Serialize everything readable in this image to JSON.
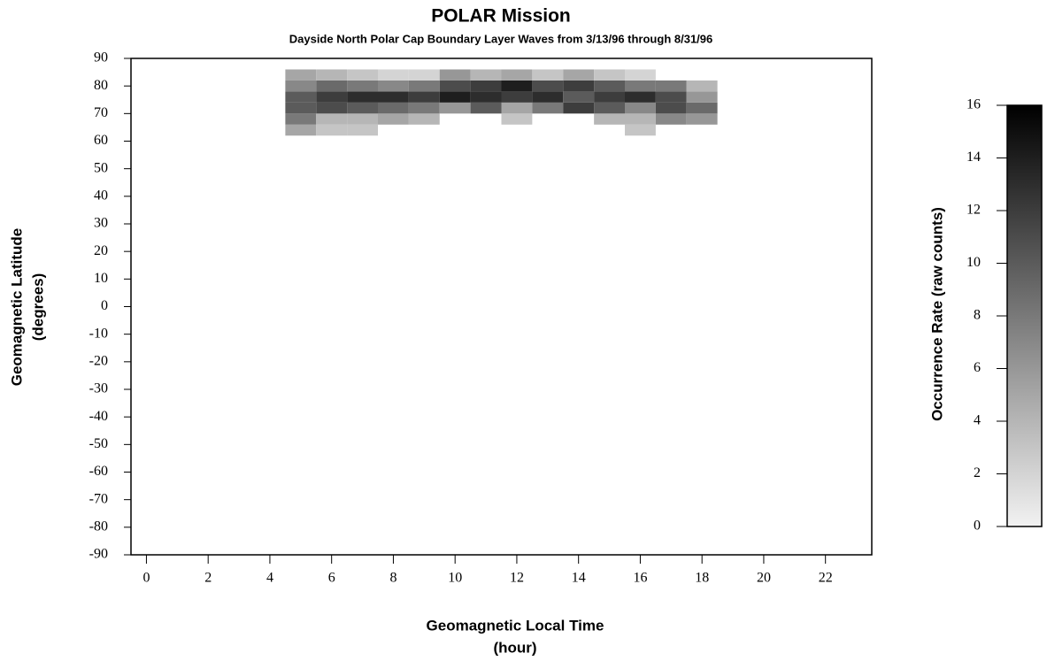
{
  "chart_data": {
    "type": "heatmap",
    "title": "POLAR Mission",
    "subtitle": "Dayside North Polar Cap Boundary Layer Waves from 3/13/96 through 8/31/96",
    "x_label": [
      "Geomagnetic Local Time",
      "(hour)"
    ],
    "y_label": [
      "Geomagnetic Latitude",
      "(degrees)"
    ],
    "colorbar_label": "Occurrence Rate (raw counts)",
    "xlim": [
      -0.5,
      23.5
    ],
    "xticks": [
      0,
      2,
      4,
      6,
      8,
      10,
      12,
      14,
      16,
      18,
      20,
      22
    ],
    "ylim": [
      -90,
      90
    ],
    "yticks": [
      90,
      80,
      70,
      60,
      50,
      40,
      30,
      20,
      10,
      0,
      -10,
      -20,
      -30,
      -40,
      -50,
      -60,
      -70,
      -80,
      -90
    ],
    "xbins": [
      4.5,
      5.5,
      6.5,
      7.5,
      8.5,
      9.5,
      10.5,
      11.5,
      12.5,
      13.5,
      14.5,
      15.5,
      16.5,
      17.5,
      18.5
    ],
    "ybins": [
      62,
      66,
      70,
      74,
      78,
      82,
      86
    ],
    "values": [
      [
        5,
        3,
        3,
        null,
        null,
        null,
        null,
        null,
        null,
        null,
        null,
        3,
        null,
        null
      ],
      [
        8,
        4,
        4,
        5,
        4,
        null,
        null,
        3,
        null,
        null,
        4,
        4,
        7,
        6
      ],
      [
        10,
        11,
        10,
        9,
        8,
        6,
        10,
        5,
        8,
        12,
        10,
        7,
        11,
        9
      ],
      [
        10,
        12,
        13,
        13,
        12,
        14,
        13,
        12,
        13,
        10,
        12,
        13,
        11,
        6
      ],
      [
        7,
        9,
        8,
        7,
        8,
        11,
        12,
        14,
        11,
        12,
        10,
        8,
        8,
        4
      ],
      [
        5,
        4,
        3,
        2,
        2,
        6,
        4,
        5,
        3,
        5,
        3,
        2,
        null,
        null
      ]
    ],
    "clim": [
      0,
      16
    ],
    "cticks": [
      0,
      2,
      4,
      6,
      8,
      10,
      12,
      14,
      16
    ],
    "colormap": [
      "#f2f2f2",
      "#000000"
    ]
  }
}
